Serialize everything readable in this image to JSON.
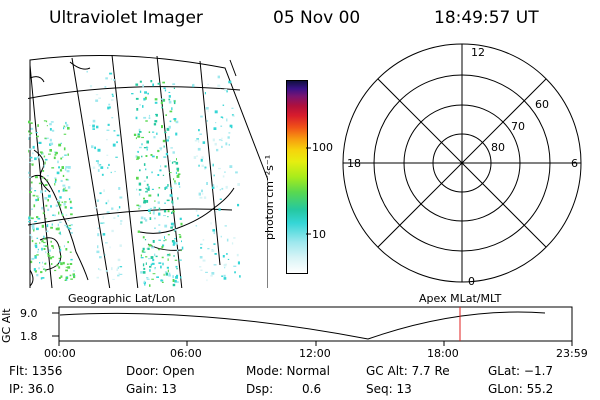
{
  "header": {
    "instrument": "Ultraviolet Imager",
    "date": "05 Nov 00",
    "time": "18:49:57 UT"
  },
  "colorbar": {
    "label": "photon cm⁻²s⁻¹",
    "ticks": [
      "100",
      "10"
    ]
  },
  "polar_plot": {
    "mlt_labels": {
      "top": "12",
      "left": "18",
      "right": "6",
      "bottom": "0"
    },
    "lat_labels": [
      "60",
      "70",
      "80"
    ]
  },
  "map": {
    "left_label": "Geographic Lat/Lon",
    "right_label": "Apex MLat/MLT"
  },
  "altitude_plot": {
    "axis_label": "GC Alt",
    "y_ticks": [
      "9.0",
      "1.8"
    ],
    "x_ticks": [
      "00:00",
      "06:00",
      "12:00",
      "18:00",
      "23:59"
    ],
    "marker_color": "#e02020"
  },
  "info": {
    "flt": "Flt: 1356",
    "door": "Door: Open",
    "mode": "Mode: Normal",
    "gc_alt": "GC Alt: 7.7 Re",
    "glat": "GLat: −1.7",
    "ip": "IP: 36.0",
    "gain": "Gain: 13",
    "dsp_label": "Dsp:",
    "dsp_value": "0.6",
    "seq": "Seq: 13",
    "glon": "GLon: 55.2"
  }
}
